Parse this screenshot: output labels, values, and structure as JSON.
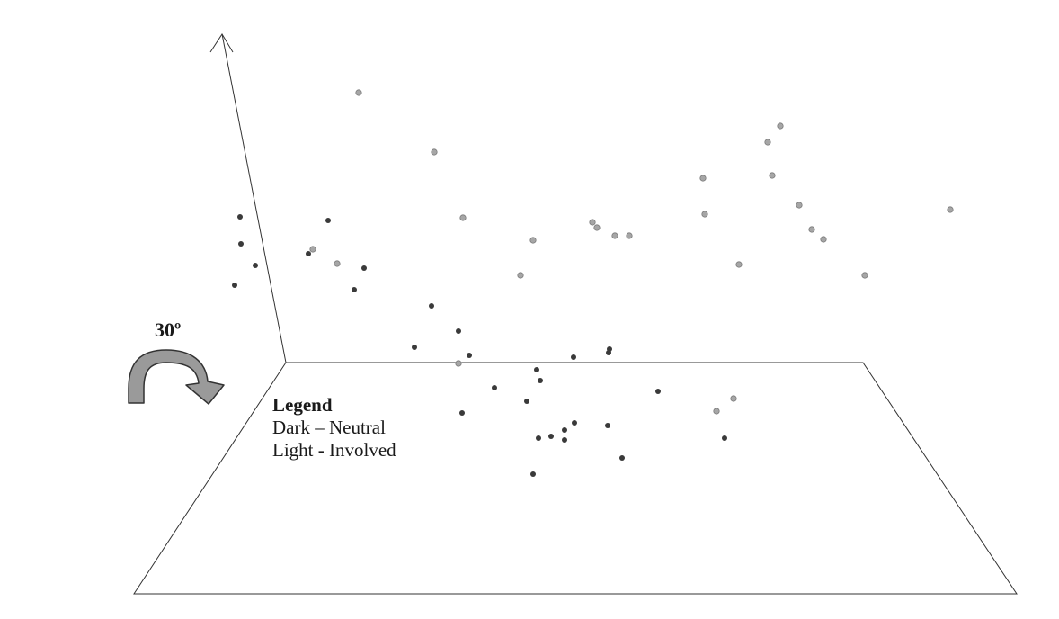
{
  "rotation_label": "30º",
  "legend": {
    "title": "Legend",
    "dark_entry": "Dark – Neutral",
    "light_entry": "Light - Involved"
  },
  "colors": {
    "dark": "#3a3a3a",
    "light": "#a6a6a6",
    "light_stroke": "#7a7a7a",
    "axis": "#333333",
    "arrow_fill": "#9a9a9a",
    "arrow_stroke": "#333333"
  },
  "chart_data": {
    "type": "scatter",
    "title": "",
    "view": "3d",
    "rotation_degrees": 30,
    "grid": false,
    "legend_position": "bottom-left",
    "series": [
      {
        "name": "Dark – Neutral",
        "color": "#3a3a3a",
        "points": [
          [
            267,
            241
          ],
          [
            268,
            271
          ],
          [
            284,
            295
          ],
          [
            261,
            317
          ],
          [
            365,
            245
          ],
          [
            343,
            282
          ],
          [
            405,
            298
          ],
          [
            394,
            322
          ],
          [
            480,
            340
          ],
          [
            461,
            386
          ],
          [
            510,
            368
          ],
          [
            522,
            395
          ],
          [
            550,
            431
          ],
          [
            514,
            459
          ],
          [
            597,
            411
          ],
          [
            601,
            423
          ],
          [
            586,
            446
          ],
          [
            599,
            487
          ],
          [
            613,
            485
          ],
          [
            628,
            478
          ],
          [
            628,
            489
          ],
          [
            639,
            470
          ],
          [
            676,
            473
          ],
          [
            593,
            527
          ],
          [
            692,
            509
          ],
          [
            638,
            397
          ],
          [
            678,
            388
          ],
          [
            677,
            392
          ],
          [
            732,
            435
          ],
          [
            806,
            487
          ]
        ]
      },
      {
        "name": "Light - Involved",
        "color": "#a6a6a6",
        "points": [
          [
            399,
            103
          ],
          [
            483,
            169
          ],
          [
            515,
            242
          ],
          [
            348,
            277
          ],
          [
            375,
            293
          ],
          [
            579,
            306
          ],
          [
            593,
            267
          ],
          [
            659,
            247
          ],
          [
            664,
            253
          ],
          [
            684,
            262
          ],
          [
            700,
            262
          ],
          [
            782,
            198
          ],
          [
            784,
            238
          ],
          [
            822,
            294
          ],
          [
            854,
            158
          ],
          [
            868,
            140
          ],
          [
            859,
            195
          ],
          [
            889,
            228
          ],
          [
            903,
            255
          ],
          [
            916,
            266
          ],
          [
            962,
            306
          ],
          [
            1057,
            233
          ],
          [
            510,
            404
          ],
          [
            816,
            443
          ],
          [
            797,
            457
          ]
        ]
      }
    ]
  }
}
